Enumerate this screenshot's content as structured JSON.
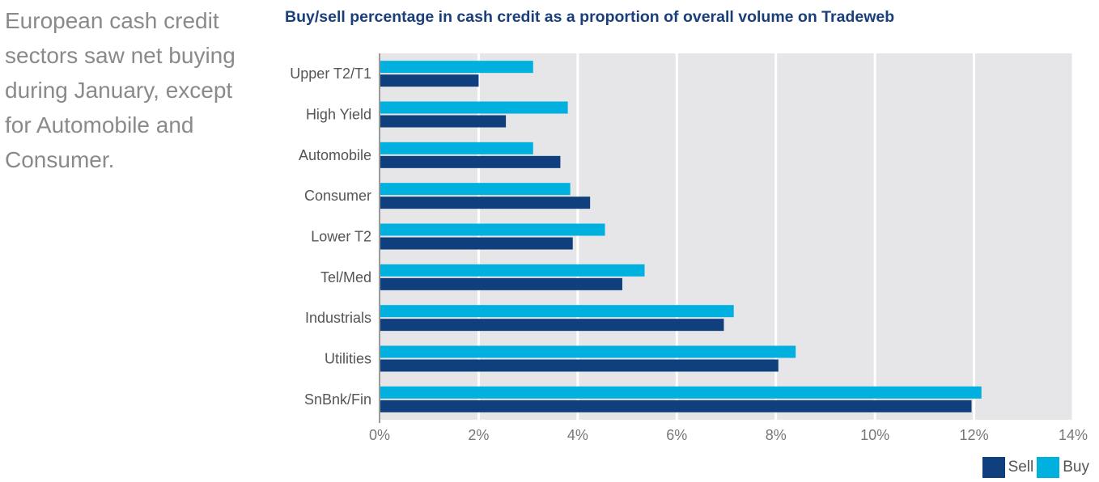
{
  "intro_text": "European cash credit sectors saw net buying during January, except for Automobile and Consumer.",
  "colors": {
    "sell": "#0f3f7c",
    "buy": "#00b1e0",
    "plot_bg": "#e6e6e8",
    "grid": "#ffffff"
  },
  "chart_data": {
    "type": "bar",
    "orientation": "horizontal",
    "title": "Buy/sell percentage in cash credit as a proportion of overall volume on Tradeweb",
    "categories": [
      "Upper T2/T1",
      "High Yield",
      "Automobile",
      "Consumer",
      "Lower T2",
      "Tel/Med",
      "Industrials",
      "Utilities",
      "SnBnk/Fin"
    ],
    "series": [
      {
        "name": "Buy",
        "values": [
          3.1,
          3.8,
          3.1,
          3.85,
          4.55,
          5.35,
          7.15,
          8.4,
          12.15
        ]
      },
      {
        "name": "Sell",
        "values": [
          2.0,
          2.55,
          3.65,
          4.25,
          3.9,
          4.9,
          6.95,
          8.05,
          11.95
        ]
      }
    ],
    "xlim": [
      0,
      14
    ],
    "x_ticks": [
      "0%",
      "2%",
      "4%",
      "6%",
      "8%",
      "10%",
      "12%",
      "14%"
    ],
    "xlabel": "",
    "ylabel": "",
    "grid": true,
    "legend": {
      "placement": "bottom-right",
      "entries": [
        "Sell",
        "Buy"
      ]
    }
  }
}
